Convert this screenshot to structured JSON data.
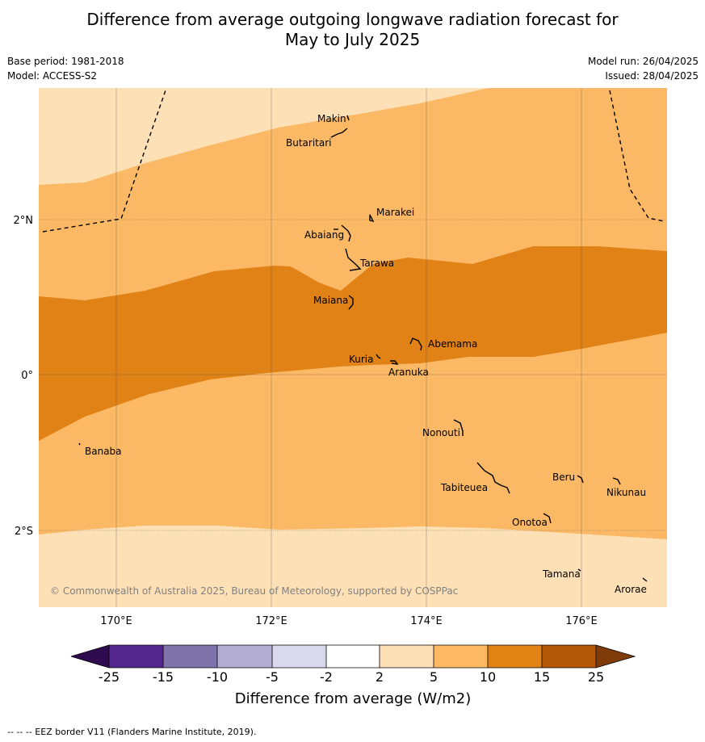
{
  "title_line1": "Difference from average outgoing longwave radiation forecast for",
  "title_line2": "May to July 2025",
  "base_period": "Base period: 1981-2018",
  "model": "Model: ACCESS-S2",
  "model_run": "Model run: 26/04/2025",
  "issued": "Issued: 28/04/2025",
  "copyright": "© Commonwealth of Australia 2025, Bureau of Meteorology, supported by COSPPac",
  "footnote": "--  --  -- EEZ border V11 (Flanders Marine Institute, 2019).",
  "lon_ticks": [
    "170°E",
    "172°E",
    "174°E",
    "176°E"
  ],
  "lat_ticks": [
    "2°N",
    "0°",
    "2°S"
  ],
  "islands": {
    "makin": "Makin",
    "butaritari": "Butaritari",
    "marakei": "Marakei",
    "abaiang": "Abaiang",
    "tarawa": "Tarawa",
    "maiana": "Maiana",
    "abemama": "Abemama",
    "kuria": "Kuria",
    "aranuka": "Aranuka",
    "banaba": "Banaba",
    "nonouti": "Nonouti",
    "beru": "Beru",
    "tabiteuea": "Tabiteuea",
    "nikunau": "Nikunau",
    "onotoa": "Onotoa",
    "tamana": "Tamana",
    "arorae": "Arorae"
  },
  "colorbar": {
    "title": "Difference from average (W/m2)",
    "labels": [
      "-25",
      "-15",
      "-10",
      "-5",
      "-2",
      "2",
      "5",
      "10",
      "15",
      "25"
    ],
    "colors": {
      "below_min": "#2d0b4e",
      "c1": "#54278f",
      "c2": "#8073ac",
      "c3": "#b2abd2",
      "c4": "#d8daeb",
      "c5": "#ffffff",
      "c6": "#fee0b6",
      "c7": "#fdb863",
      "c8": "#e08214",
      "c9": "#b35806",
      "above_max": "#7f3b08"
    }
  }
}
